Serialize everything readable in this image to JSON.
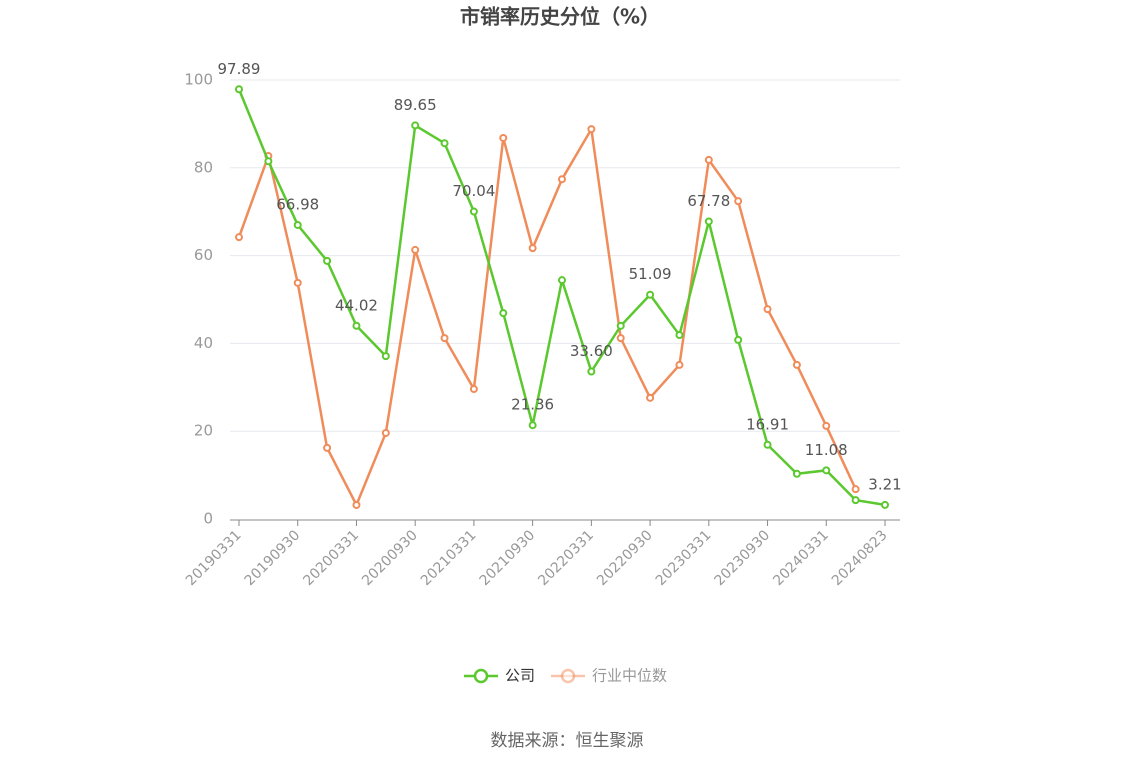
{
  "chart_data": {
    "type": "line",
    "title": "市销率历史分位（%）",
    "source": "数据来源：恒生聚源",
    "categories": [
      "20190331",
      null,
      "20190930",
      null,
      "20200331",
      null,
      "20200930",
      null,
      "20210331",
      null,
      "20210930",
      null,
      "20220331",
      null,
      "20220930",
      null,
      "20230331",
      null,
      "20230930",
      null,
      "20240331",
      null,
      "20240823"
    ],
    "ylim": [
      0,
      100
    ],
    "yticks": [
      0,
      20,
      40,
      60,
      80,
      100
    ],
    "grid": true,
    "legend": "bottom",
    "series": [
      {
        "name": "公司",
        "color": "#5ac82e",
        "values": [
          97.89,
          81.5,
          66.98,
          58.8,
          44.02,
          37.1,
          89.65,
          85.6,
          70.04,
          46.9,
          21.36,
          54.4,
          33.6,
          44.0,
          51.09,
          41.9,
          67.78,
          40.8,
          16.91,
          10.3,
          11.08,
          4.3,
          3.21
        ],
        "value_labels": [
          "97.89",
          null,
          "66.98",
          null,
          "44.02",
          null,
          "89.65",
          null,
          "70.04",
          null,
          "21.36",
          null,
          "33.60",
          null,
          "51.09",
          null,
          "67.78",
          null,
          "16.91",
          null,
          "11.08",
          null,
          "3.21"
        ]
      },
      {
        "name": "行业中位数",
        "color": "#f08c5a",
        "values": [
          64.2,
          82.7,
          53.8,
          16.2,
          3.2,
          19.6,
          61.3,
          41.2,
          29.6,
          86.8,
          61.7,
          77.4,
          88.8,
          41.2,
          27.6,
          35.1,
          81.8,
          72.4,
          47.8,
          35.1,
          21.2,
          6.8,
          null
        ]
      }
    ]
  }
}
